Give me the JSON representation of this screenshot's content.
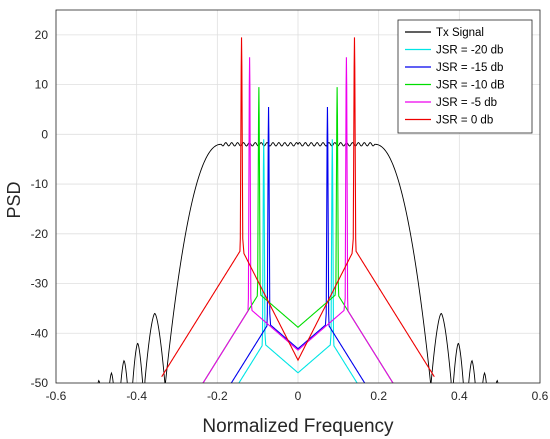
{
  "chart_data": {
    "type": "line",
    "title": "",
    "xlabel": "Normalized Frequency",
    "ylabel": "PSD",
    "xlim": [
      -0.6,
      0.6
    ],
    "ylim": [
      -50,
      25
    ],
    "xticks": [
      "-0.6",
      "-0.4",
      "-0.2",
      "0",
      "0.2",
      "0.4",
      "0.6"
    ],
    "yticks": [
      "-50",
      "-40",
      "-30",
      "-20",
      "-10",
      "0",
      "10",
      "20"
    ],
    "grid": true,
    "legend_position": "top-right",
    "series": [
      {
        "name": "Tx Signal",
        "color": "#000000",
        "kind": "tx",
        "passband_level": -2,
        "band_edge": 0.33,
        "sidelobe_peaks": [
          {
            "x": 0.36,
            "y": -36
          },
          {
            "x": 0.4,
            "y": -42
          },
          {
            "x": 0.43,
            "y": -45.5
          },
          {
            "x": 0.465,
            "y": -48
          },
          {
            "x": 0.49,
            "y": -49.5
          }
        ]
      },
      {
        "name": "JSR = -20 db",
        "color": "#00e5e5",
        "kind": "jammer",
        "tone_freq": 0.085,
        "peak": -1,
        "pedestal": -42
      },
      {
        "name": "JSR = -15 db",
        "color": "#0000ee",
        "kind": "jammer",
        "tone_freq": 0.073,
        "peak": 5.5,
        "pedestal": -38
      },
      {
        "name": "JSR = -10 dB",
        "color": "#00dd00",
        "kind": "jammer",
        "tone_freq": 0.097,
        "peak": 9.5,
        "pedestal": -32
      },
      {
        "name": "JSR = -5 db",
        "color": "#ee00ee",
        "kind": "jammer",
        "tone_freq": 0.12,
        "peak": 15.5,
        "pedestal": -35
      },
      {
        "name": "JSR = 0 db",
        "color": "#ee0000",
        "kind": "jammer",
        "tone_freq": 0.14,
        "peak": 19.5,
        "pedestal": -23,
        "floor_at_zero": -46.5
      }
    ]
  }
}
